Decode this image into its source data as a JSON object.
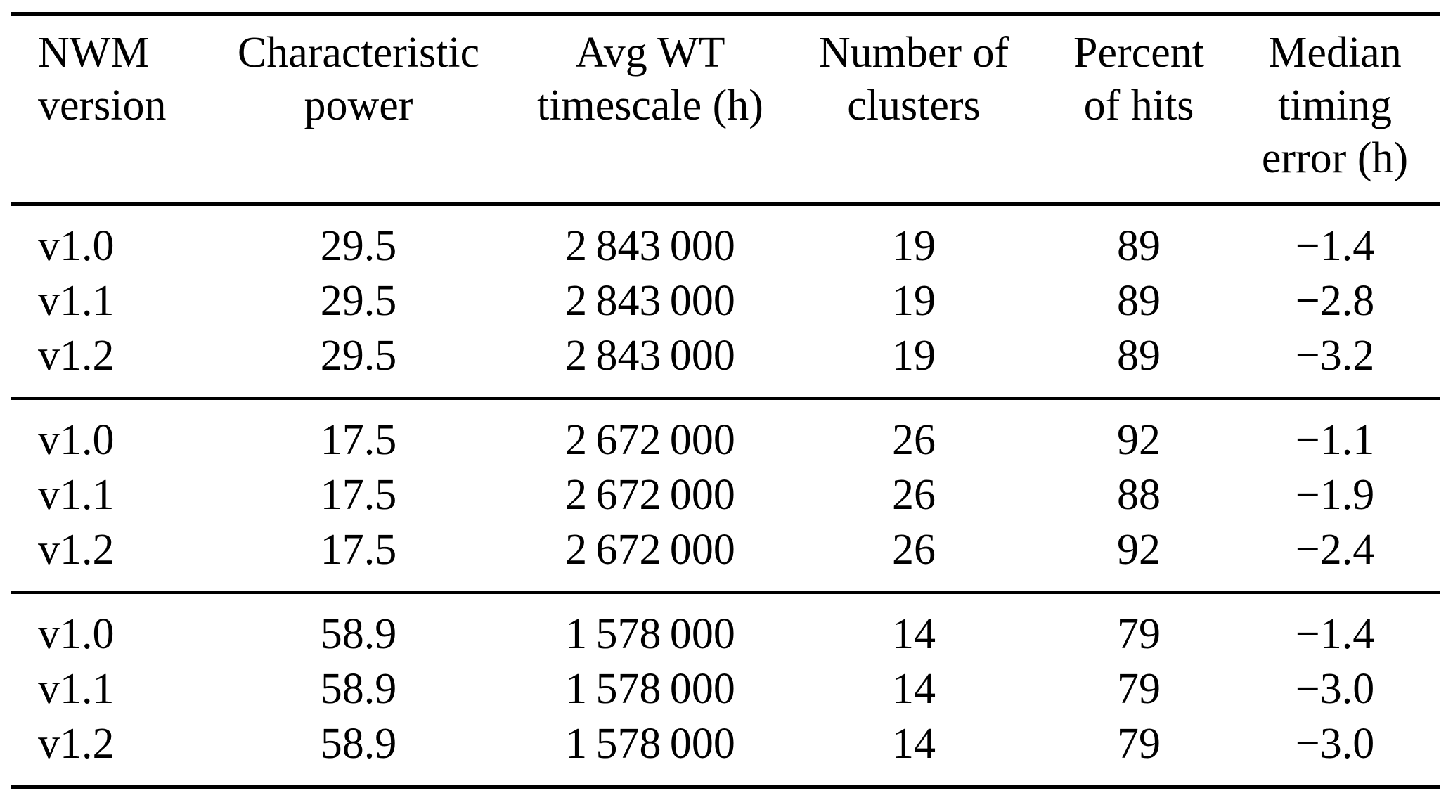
{
  "table": {
    "description": "Results table comparing NWM versions",
    "colors": {
      "text": "#000000",
      "background": "#ffffff",
      "rule": "#000000"
    },
    "headers": [
      "NWM\nversion",
      "Characteristic\npower",
      "Avg WT\ntimescale (h)",
      "Number of\nclusters",
      "Percent\nof hits",
      "Median\ntiming\nerror (h)"
    ],
    "groups": [
      {
        "rows": [
          [
            "v1.0",
            "29.5",
            "2 843 000",
            "19",
            "89",
            "−1.4"
          ],
          [
            "v1.1",
            "29.5",
            "2 843 000",
            "19",
            "89",
            "−2.8"
          ],
          [
            "v1.2",
            "29.5",
            "2 843 000",
            "19",
            "89",
            "−3.2"
          ]
        ]
      },
      {
        "rows": [
          [
            "v1.0",
            "17.5",
            "2 672 000",
            "26",
            "92",
            "−1.1"
          ],
          [
            "v1.1",
            "17.5",
            "2 672 000",
            "26",
            "88",
            "−1.9"
          ],
          [
            "v1.2",
            "17.5",
            "2 672 000",
            "26",
            "92",
            "−2.4"
          ]
        ]
      },
      {
        "rows": [
          [
            "v1.0",
            "58.9",
            "1 578 000",
            "14",
            "79",
            "−1.4"
          ],
          [
            "v1.1",
            "58.9",
            "1 578 000",
            "14",
            "79",
            "−3.0"
          ],
          [
            "v1.2",
            "58.9",
            "1 578 000",
            "14",
            "79",
            "−3.0"
          ]
        ]
      }
    ]
  }
}
